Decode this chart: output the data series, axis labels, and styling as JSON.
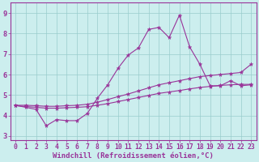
{
  "x": [
    0,
    1,
    2,
    3,
    4,
    5,
    6,
    7,
    8,
    9,
    10,
    11,
    12,
    13,
    14,
    15,
    16,
    17,
    18,
    19,
    20,
    21,
    22,
    23
  ],
  "line_jagged": [
    4.5,
    4.4,
    4.3,
    3.5,
    3.8,
    3.75,
    3.75,
    4.1,
    4.85,
    5.5,
    6.3,
    6.95,
    7.3,
    8.2,
    8.3,
    7.8,
    8.9,
    7.35,
    6.5,
    5.45,
    5.45,
    5.7,
    5.45,
    5.5
  ],
  "line_upper": [
    4.5,
    4.5,
    4.48,
    4.45,
    4.45,
    4.48,
    4.5,
    4.55,
    4.65,
    4.78,
    4.92,
    5.05,
    5.2,
    5.35,
    5.5,
    5.6,
    5.7,
    5.8,
    5.9,
    5.95,
    6.0,
    6.05,
    6.1,
    6.5
  ],
  "line_lower": [
    4.48,
    4.44,
    4.4,
    4.36,
    4.36,
    4.38,
    4.4,
    4.43,
    4.5,
    4.58,
    4.68,
    4.78,
    4.88,
    4.98,
    5.08,
    5.15,
    5.22,
    5.3,
    5.37,
    5.42,
    5.47,
    5.5,
    5.52,
    5.52
  ],
  "ylim": [
    2.8,
    9.5
  ],
  "xlim": [
    -0.5,
    23.5
  ],
  "line_color": "#993399",
  "bg_color": "#cceeee",
  "grid_color": "#99cccc",
  "xlabel": "Windchill (Refroidissement éolien,°C)",
  "xlabel_fontsize": 6.5,
  "tick_fontsize": 5.8,
  "yticks": [
    3,
    4,
    5,
    6,
    7,
    8,
    9
  ],
  "xtick_labels": [
    "0",
    "1",
    "2",
    "3",
    "4",
    "5",
    "6",
    "7",
    "8",
    "9",
    "10",
    "11",
    "12",
    "13",
    "14",
    "15",
    "16",
    "17",
    "18",
    "19",
    "20",
    "21",
    "22",
    "23"
  ]
}
